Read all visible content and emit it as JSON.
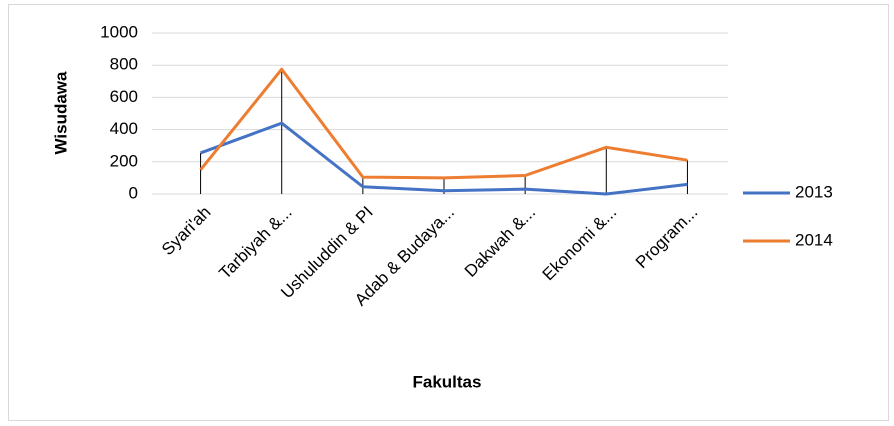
{
  "chart_data": {
    "type": "line",
    "categories": [
      "Syari'ah",
      "Tarbiyah &...",
      "Ushuluddin & PI",
      "Adab & Budaya...",
      "Dakwah &...",
      "Ekonomi &...",
      "Program..."
    ],
    "series": [
      {
        "name": "2013",
        "color": "#4472c4",
        "values": [
          255,
          440,
          45,
          20,
          30,
          0,
          60
        ]
      },
      {
        "name": "2014",
        "color": "#ed7d31",
        "values": [
          150,
          775,
          105,
          100,
          115,
          290,
          210
        ]
      }
    ],
    "xlabel": "Fakultas",
    "ylabel": "Wisudawa",
    "ylim": [
      0,
      1000
    ],
    "yticks": [
      0,
      200,
      400,
      600,
      800,
      1000
    ],
    "grid": true,
    "legend": "right",
    "drop_lines": true
  }
}
